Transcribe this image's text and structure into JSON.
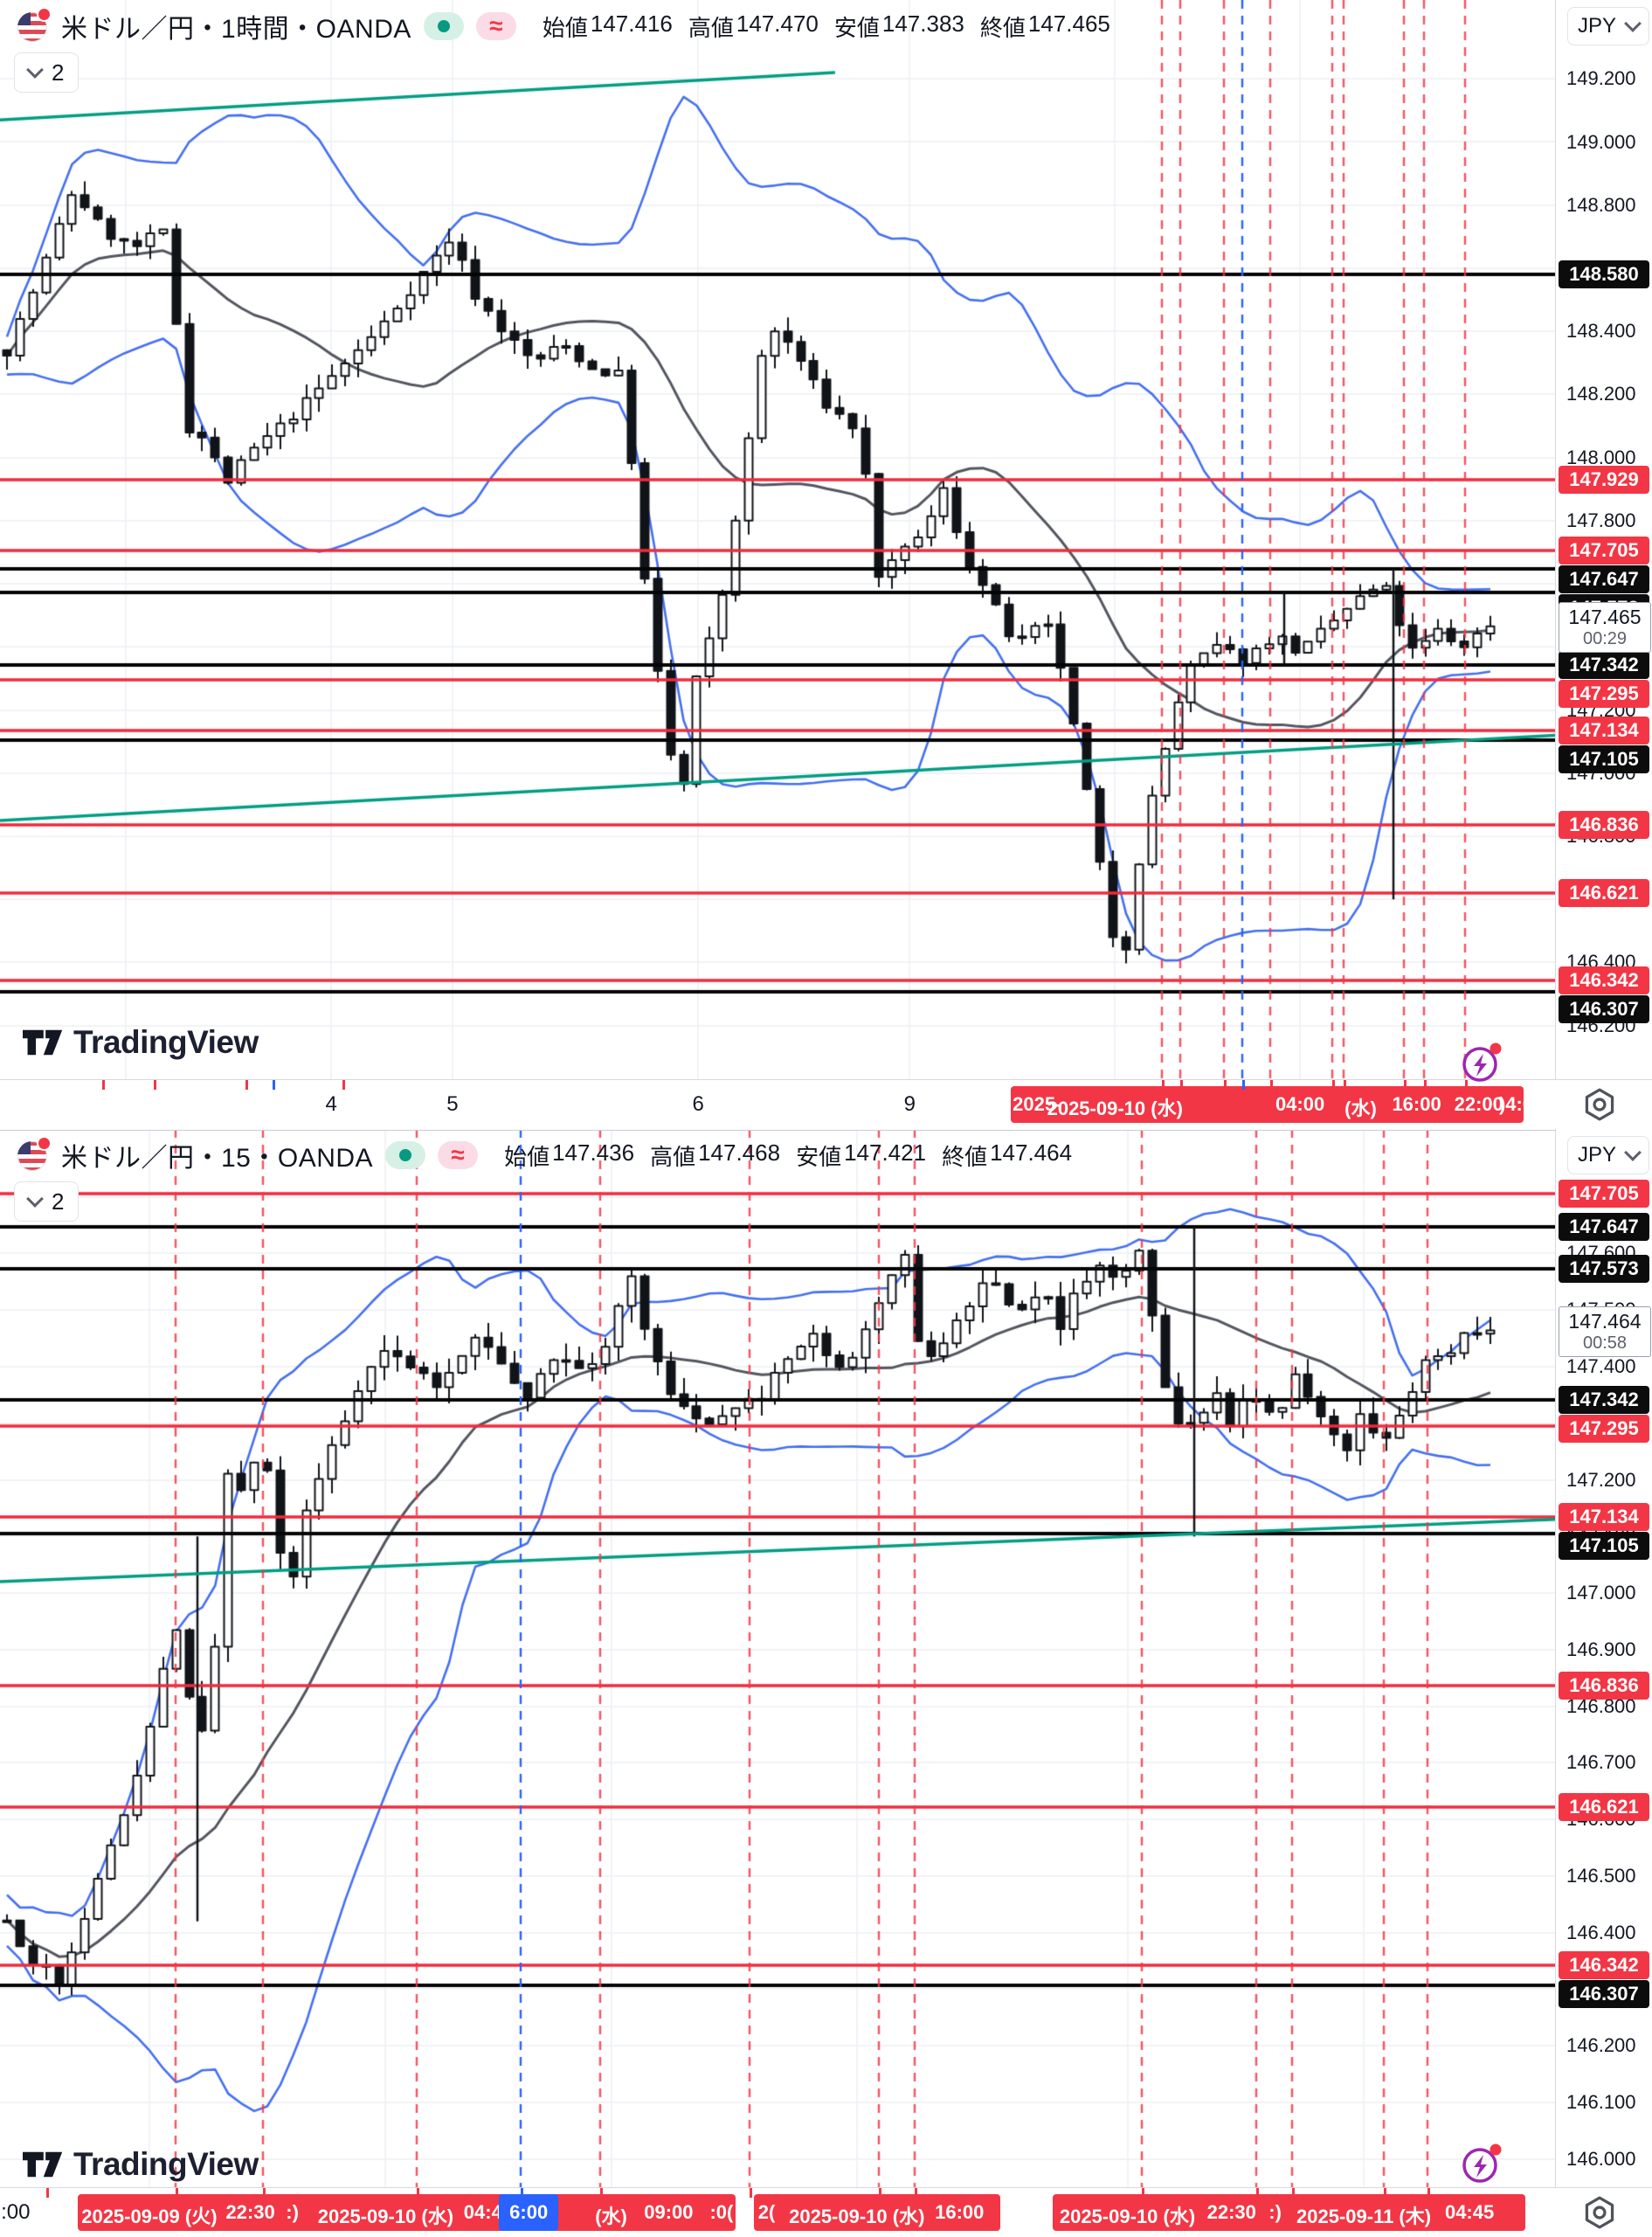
{
  "app": {
    "logo_text": "TradingView",
    "price_scale_currency": "JPY",
    "indicator_count": "2",
    "approx_symbol": "≈"
  },
  "panels": [
    {
      "header": {
        "title": "米ドル／円・1時間・OANDA",
        "ohlc": [
          {
            "label": "始値",
            "value": "147.416"
          },
          {
            "label": "高値",
            "value": "147.470"
          },
          {
            "label": "安値",
            "value": "147.383"
          },
          {
            "label": "終値",
            "value": "147.465"
          }
        ]
      }
    },
    {
      "header": {
        "title": "米ドル／円・15・OANDA",
        "ohlc": [
          {
            "label": "始値",
            "value": "147.436"
          },
          {
            "label": "高値",
            "value": "147.468"
          },
          {
            "label": "安値",
            "value": "147.421"
          },
          {
            "label": "終値",
            "value": "147.464"
          }
        ]
      }
    }
  ],
  "chart_data": [
    {
      "type": "candlestick",
      "panel": "top",
      "symbol": "米ドル／円",
      "timeframe": "1時間",
      "provider": "OANDA",
      "ohlc_display": {
        "open": 147.416,
        "high": 147.47,
        "low": 147.383,
        "close": 147.465
      },
      "current_price": 147.465,
      "current_price_label": "147.465",
      "countdown": "00:29",
      "y_axis": {
        "top_price": 149.45,
        "bottom_price": 146.03,
        "tick_step": 0.2,
        "ticks": [
          149.2,
          149.0,
          148.8,
          148.6,
          148.4,
          148.2,
          148.0,
          147.8,
          147.6,
          147.4,
          147.2,
          147.0,
          146.8,
          146.6,
          146.4,
          146.2
        ]
      },
      "levels_black": [
        148.58,
        147.647,
        147.573,
        147.342,
        147.105,
        146.307
      ],
      "levels_red": [
        147.929,
        147.705,
        147.295,
        147.134,
        146.836,
        146.621,
        146.342
      ],
      "trendlines": [
        {
          "t1": 0,
          "p1": 149.07,
          "t2": 0.537,
          "p2": 149.22
        },
        {
          "t1": 0,
          "p1": 146.85,
          "t2": 1,
          "p2": 147.12
        }
      ],
      "v_dashed_red": [
        0.747,
        0.759,
        0.787,
        0.817,
        0.857,
        0.864,
        0.903,
        0.916,
        0.942
      ],
      "v_dashed_blue": [
        0.799
      ],
      "black_segments": [
        {
          "t": 0.826,
          "from": 147.573,
          "to": 147.345
        },
        {
          "t": 0.896,
          "from": 147.647,
          "to": 146.6
        }
      ],
      "grid_v": [
        0.081,
        0.213,
        0.291,
        0.449,
        0.585,
        0.717,
        0.836
      ],
      "price_path": [
        [
          0,
          148.34
        ],
        [
          0.02,
          148.55
        ],
        [
          0.045,
          148.85
        ],
        [
          0.065,
          148.72
        ],
        [
          0.085,
          148.66
        ],
        [
          0.105,
          148.72
        ],
        [
          0.118,
          148.3
        ],
        [
          0.125,
          148.0
        ],
        [
          0.135,
          148.1
        ],
        [
          0.145,
          147.9
        ],
        [
          0.165,
          148.02
        ],
        [
          0.19,
          148.12
        ],
        [
          0.22,
          148.26
        ],
        [
          0.25,
          148.4
        ],
        [
          0.28,
          148.58
        ],
        [
          0.3,
          148.7
        ],
        [
          0.315,
          148.52
        ],
        [
          0.335,
          148.4
        ],
        [
          0.355,
          148.3
        ],
        [
          0.375,
          148.36
        ],
        [
          0.395,
          148.28
        ],
        [
          0.415,
          148.26
        ],
        [
          0.43,
          147.6
        ],
        [
          0.445,
          147.1
        ],
        [
          0.455,
          146.92
        ],
        [
          0.465,
          147.3
        ],
        [
          0.48,
          147.5
        ],
        [
          0.5,
          148.05
        ],
        [
          0.512,
          148.42
        ],
        [
          0.53,
          148.35
        ],
        [
          0.55,
          148.18
        ],
        [
          0.575,
          148.08
        ],
        [
          0.588,
          147.62
        ],
        [
          0.605,
          147.7
        ],
        [
          0.625,
          147.82
        ],
        [
          0.632,
          147.9
        ],
        [
          0.645,
          147.7
        ],
        [
          0.662,
          147.56
        ],
        [
          0.68,
          147.4
        ],
        [
          0.7,
          147.48
        ],
        [
          0.712,
          147.32
        ],
        [
          0.722,
          147.08
        ],
        [
          0.732,
          146.85
        ],
        [
          0.742,
          146.55
        ],
        [
          0.752,
          146.38
        ],
        [
          0.762,
          146.7
        ],
        [
          0.772,
          146.92
        ],
        [
          0.782,
          147.1
        ],
        [
          0.795,
          147.32
        ],
        [
          0.815,
          147.4
        ],
        [
          0.835,
          147.36
        ],
        [
          0.855,
          147.44
        ],
        [
          0.872,
          147.38
        ],
        [
          0.89,
          147.46
        ],
        [
          0.908,
          147.54
        ],
        [
          0.928,
          147.6
        ],
        [
          0.94,
          147.46
        ],
        [
          0.95,
          147.36
        ],
        [
          0.962,
          147.46
        ],
        [
          0.98,
          147.4
        ],
        [
          1,
          147.465
        ]
      ],
      "candles": 115,
      "body_w": 9,
      "noise": {
        "seed": 7,
        "close_amp": 0.035,
        "wick": 0.045
      },
      "bollinger": {
        "window": 20,
        "mult": 2,
        "min_offset": 0.06
      },
      "time_axis": {
        "plain": [
          {
            "t": 0.213,
            "text": "4"
          },
          {
            "t": 0.291,
            "text": "5"
          },
          {
            "t": 0.449,
            "text": "6"
          },
          {
            "t": 0.585,
            "text": "9"
          }
        ],
        "bands": [
          {
            "t0": 0.65,
            "t1": 0.98,
            "labels": [
              {
                "t": 0.667,
                "text": "2025-"
              },
              {
                "t": 0.717,
                "text": "2025-09-10 (水)"
              },
              {
                "t": 0.836,
                "text": "04:00"
              },
              {
                "t": 0.875,
                "text": "(水)"
              },
              {
                "t": 0.911,
                "text": "16:00"
              },
              {
                "t": 0.951,
                "text": "22:00"
              },
              {
                "t": 0.975,
                "text": ")4:0"
              }
            ]
          }
        ],
        "blue_labels": [],
        "ticks_red": [
          0.066,
          0.099,
          0.158,
          0.22,
          0.747,
          0.759,
          0.787,
          0.817,
          0.857,
          0.864,
          0.903,
          0.916,
          0.942
        ],
        "ticks_blue": [
          0.175,
          0.799
        ]
      }
    },
    {
      "type": "candlestick",
      "panel": "bottom",
      "symbol": "米ドル／円",
      "timeframe": "15",
      "provider": "OANDA",
      "ohlc_display": {
        "open": 147.436,
        "high": 147.468,
        "low": 147.421,
        "close": 147.464
      },
      "current_price": 147.464,
      "current_price_label": "147.464",
      "countdown": "00:58",
      "y_axis": {
        "top_price": 147.82,
        "bottom_price": 145.95,
        "tick_step": 0.1,
        "ticks": [
          147.7,
          147.6,
          147.5,
          147.4,
          147.3,
          147.2,
          147.1,
          147.0,
          146.9,
          146.8,
          146.7,
          146.6,
          146.5,
          146.4,
          146.3,
          146.2,
          146.1,
          146.0
        ]
      },
      "levels_black": [
        147.647,
        147.573,
        147.342,
        147.105,
        146.307
      ],
      "levels_red": [
        147.705,
        147.295,
        147.134,
        146.836,
        146.621,
        146.342
      ],
      "trendlines": [
        {
          "t1": 0,
          "p1": 147.02,
          "t2": 1,
          "p2": 147.13
        }
      ],
      "v_dashed_red": [
        0.113,
        0.169,
        0.268,
        0.386,
        0.482,
        0.565,
        0.588,
        0.734,
        0.808,
        0.831,
        0.89,
        0.918
      ],
      "v_dashed_blue": [
        0.335
      ],
      "black_segments": [
        {
          "t": 0.127,
          "from": 147.1,
          "to": 146.42
        },
        {
          "t": 0.768,
          "from": 147.647,
          "to": 147.1
        }
      ],
      "grid_v": [
        0.096,
        0.248,
        0.393,
        0.551,
        0.725,
        0.877
      ],
      "price_path": [
        [
          0,
          146.42
        ],
        [
          0.018,
          146.35
        ],
        [
          0.036,
          146.31
        ],
        [
          0.055,
          146.45
        ],
        [
          0.075,
          146.58
        ],
        [
          0.095,
          146.74
        ],
        [
          0.106,
          146.88
        ],
        [
          0.115,
          146.94
        ],
        [
          0.124,
          146.8
        ],
        [
          0.132,
          146.76
        ],
        [
          0.14,
          146.9
        ],
        [
          0.15,
          147.25
        ],
        [
          0.16,
          147.15
        ],
        [
          0.172,
          147.3
        ],
        [
          0.182,
          147.08
        ],
        [
          0.192,
          147.02
        ],
        [
          0.202,
          147.14
        ],
        [
          0.22,
          147.26
        ],
        [
          0.24,
          147.38
        ],
        [
          0.252,
          147.44
        ],
        [
          0.27,
          147.41
        ],
        [
          0.29,
          147.37
        ],
        [
          0.308,
          147.42
        ],
        [
          0.318,
          147.46
        ],
        [
          0.335,
          147.39
        ],
        [
          0.348,
          147.34
        ],
        [
          0.365,
          147.42
        ],
        [
          0.383,
          147.39
        ],
        [
          0.4,
          147.42
        ],
        [
          0.412,
          147.5
        ],
        [
          0.422,
          147.56
        ],
        [
          0.432,
          147.44
        ],
        [
          0.45,
          147.34
        ],
        [
          0.47,
          147.29
        ],
        [
          0.49,
          147.32
        ],
        [
          0.51,
          147.35
        ],
        [
          0.528,
          147.42
        ],
        [
          0.545,
          147.45
        ],
        [
          0.565,
          147.39
        ],
        [
          0.578,
          147.45
        ],
        [
          0.59,
          147.52
        ],
        [
          0.605,
          147.6
        ],
        [
          0.615,
          147.44
        ],
        [
          0.625,
          147.42
        ],
        [
          0.643,
          147.5
        ],
        [
          0.662,
          147.55
        ],
        [
          0.68,
          147.5
        ],
        [
          0.7,
          147.52
        ],
        [
          0.712,
          147.47
        ],
        [
          0.722,
          147.55
        ],
        [
          0.74,
          147.58
        ],
        [
          0.75,
          147.54
        ],
        [
          0.76,
          147.62
        ],
        [
          0.768,
          147.56
        ],
        [
          0.778,
          147.38
        ],
        [
          0.788,
          147.31
        ],
        [
          0.798,
          147.29
        ],
        [
          0.815,
          147.35
        ],
        [
          0.825,
          147.3
        ],
        [
          0.835,
          147.36
        ],
        [
          0.855,
          147.31
        ],
        [
          0.872,
          147.4
        ],
        [
          0.883,
          147.31
        ],
        [
          0.893,
          147.29
        ],
        [
          0.902,
          147.25
        ],
        [
          0.912,
          147.31
        ],
        [
          0.922,
          147.29
        ],
        [
          0.932,
          147.27
        ],
        [
          0.94,
          147.31
        ],
        [
          0.95,
          147.37
        ],
        [
          0.96,
          147.44
        ],
        [
          0.97,
          147.41
        ],
        [
          0.98,
          147.46
        ],
        [
          1,
          147.464
        ]
      ],
      "candles": 115,
      "body_w": 9,
      "noise": {
        "seed": 13,
        "close_amp": 0.022,
        "wick": 0.03
      },
      "bollinger": {
        "window": 20,
        "mult": 2,
        "min_offset": 0.045
      },
      "time_axis": {
        "plain": [
          {
            "t": 0.01,
            "text": ":00"
          }
        ],
        "bands": [
          {
            "t0": 0.05,
            "t1": 0.473,
            "labels": [
              {
                "t": 0.096,
                "text": "2025-09-09 (火)"
              },
              {
                "t": 0.161,
                "text": "22:30"
              },
              {
                "t": 0.188,
                "text": ":)"
              },
              {
                "t": 0.248,
                "text": "2025-09-10 (水)"
              },
              {
                "t": 0.314,
                "text": "04:45"
              },
              {
                "t": 0.393,
                "text": "(水)"
              },
              {
                "t": 0.43,
                "text": "09:00"
              },
              {
                "t": 0.464,
                "text": ":0("
              }
            ]
          },
          {
            "t0": 0.485,
            "t1": 0.643,
            "labels": [
              {
                "t": 0.493,
                "text": "2("
              },
              {
                "t": 0.551,
                "text": "2025-09-10 (水)"
              },
              {
                "t": 0.617,
                "text": "16:00"
              }
            ]
          },
          {
            "t0": 0.677,
            "t1": 0.981,
            "labels": [
              {
                "t": 0.725,
                "text": "2025-09-10 (水)"
              },
              {
                "t": 0.792,
                "text": "22:30"
              },
              {
                "t": 0.82,
                "text": ":)"
              },
              {
                "t": 0.877,
                "text": "2025-09-11 (木)"
              },
              {
                "t": 0.945,
                "text": "04:45"
              }
            ]
          }
        ],
        "blue_labels": [
          {
            "t": 0.34,
            "text": "6:00"
          }
        ],
        "ticks_red": [
          0.03,
          0.113,
          0.169,
          0.268,
          0.386,
          0.482,
          0.565,
          0.588,
          0.734,
          0.808,
          0.831,
          0.89,
          0.918
        ],
        "ticks_blue": [
          0.335
        ]
      }
    }
  ]
}
